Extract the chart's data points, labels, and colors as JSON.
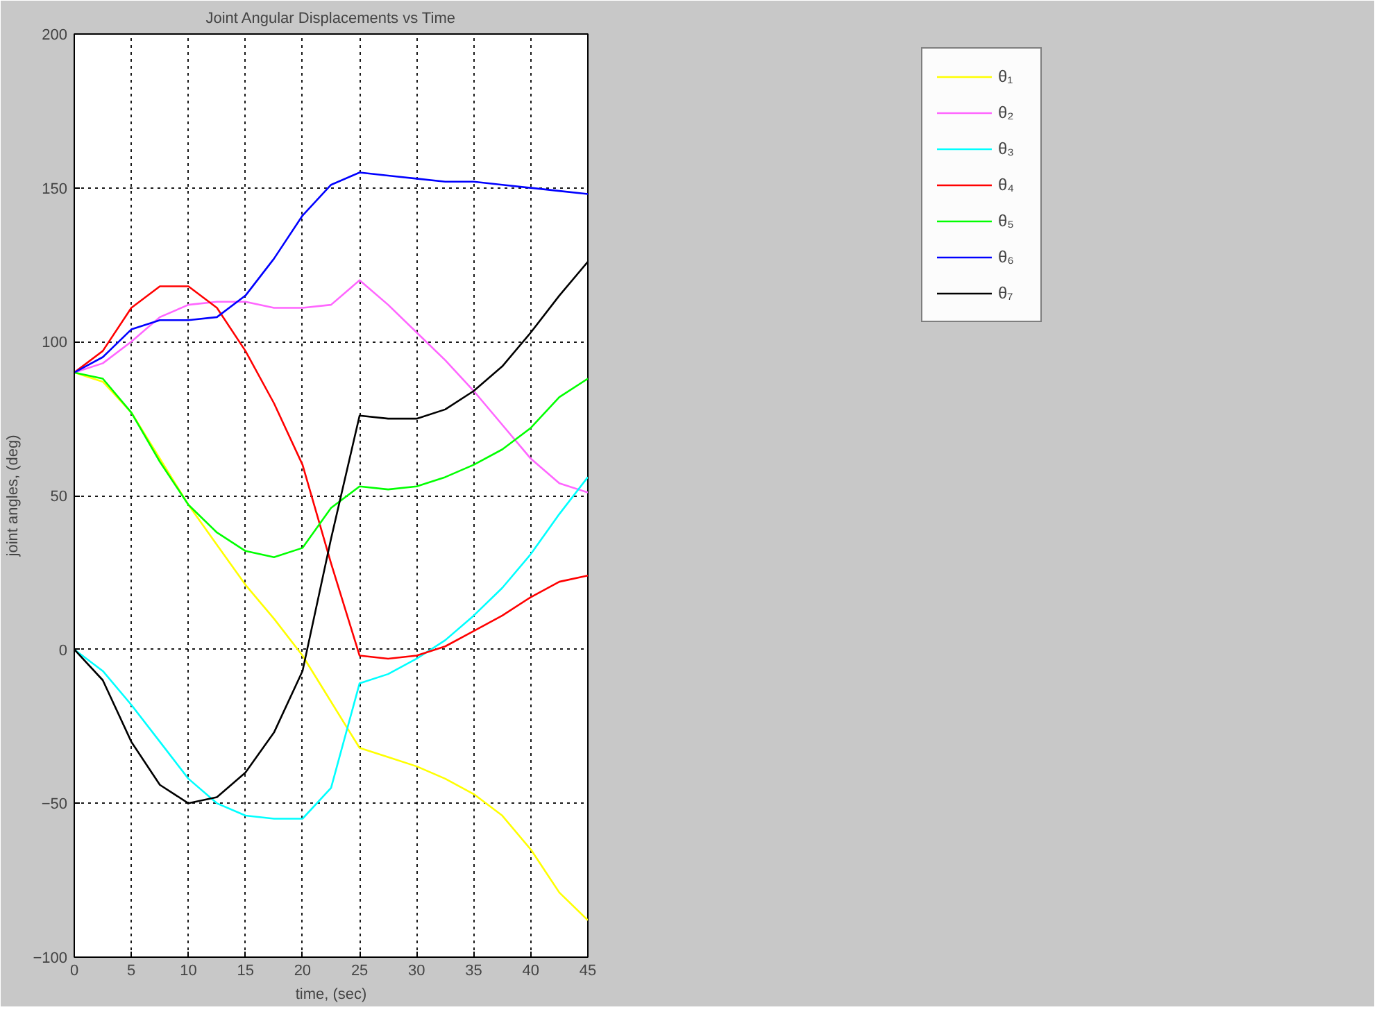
{
  "chart_data": {
    "type": "line",
    "title": "Joint Angular Displacements vs Time",
    "xlabel": "time, (sec)",
    "ylabel": "joint angles, (deg)",
    "x": [
      0,
      2.5,
      5,
      7.5,
      10,
      12.5,
      15,
      17.5,
      20,
      22.5,
      25,
      27.5,
      30,
      32.5,
      35,
      37.5,
      40,
      42.5,
      45
    ],
    "xlim": [
      0,
      45
    ],
    "xticks": [
      0,
      5,
      10,
      15,
      20,
      25,
      30,
      35,
      40,
      45
    ],
    "ylim": [
      -100,
      200
    ],
    "yticks": [
      -100,
      -50,
      0,
      50,
      100,
      150,
      200
    ],
    "grid": true,
    "legend": "top right",
    "marker": "none",
    "line_style": "solid",
    "series": [
      {
        "name": "θ₁",
        "color": "#ffff00",
        "values": [
          90,
          87,
          77,
          62,
          47,
          34,
          21,
          10,
          -2,
          -17,
          -32,
          -35,
          -38,
          -42,
          -47,
          -54,
          -65,
          -79,
          -88
        ]
      },
      {
        "name": "θ₂",
        "color": "#ff66ff",
        "values": [
          90,
          93,
          100,
          108,
          112,
          113,
          113,
          111,
          111,
          112,
          120,
          112,
          103,
          94,
          84,
          73,
          62,
          54,
          51
        ]
      },
      {
        "name": "θ₃",
        "color": "#00ffff",
        "values": [
          0,
          -7,
          -18,
          -30,
          -42,
          -50,
          -54,
          -55,
          -55,
          -45,
          -11,
          -8,
          -3,
          3,
          11,
          20,
          31,
          44,
          56
        ]
      },
      {
        "name": "θ₄",
        "color": "#ff0000",
        "values": [
          90,
          97,
          111,
          118,
          118,
          111,
          97,
          80,
          60,
          28,
          -2,
          -3,
          -2,
          1,
          6,
          11,
          17,
          22,
          24
        ]
      },
      {
        "name": "θ₅",
        "color": "#00ff00",
        "values": [
          90,
          88,
          77,
          61,
          47,
          38,
          32,
          30,
          33,
          46,
          53,
          52,
          53,
          56,
          60,
          65,
          72,
          82,
          88
        ]
      },
      {
        "name": "θ₆",
        "color": "#0000ff",
        "values": [
          90,
          95,
          104,
          107,
          107,
          108,
          115,
          127,
          141,
          151,
          155,
          154,
          153,
          152,
          152,
          151,
          150,
          149,
          148
        ]
      },
      {
        "name": "θ₇",
        "color": "#000000",
        "values": [
          0,
          -10,
          -30,
          -44,
          -50,
          -48,
          -40,
          -27,
          -7,
          36,
          76,
          75,
          75,
          78,
          84,
          92,
          103,
          115,
          126
        ]
      }
    ]
  }
}
